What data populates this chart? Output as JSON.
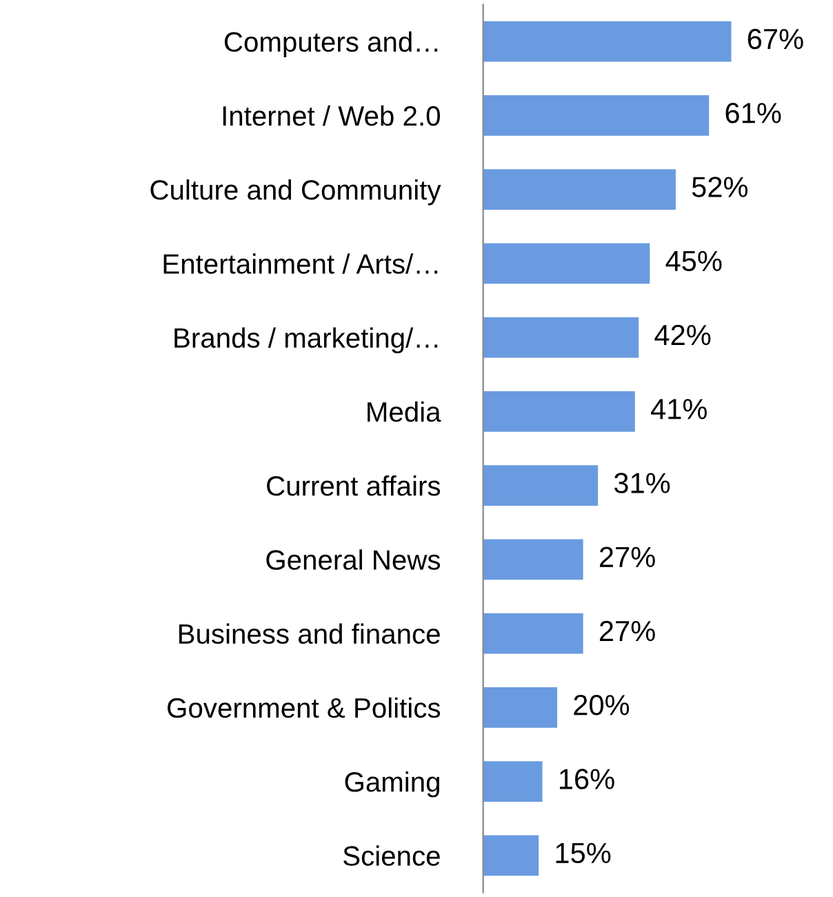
{
  "chart_data": {
    "type": "bar",
    "orientation": "horizontal",
    "color": "#6a9be0",
    "categories": [
      "Computers and…",
      "Internet / Web 2.0",
      "Culture and Community",
      "Entertainment / Arts/…",
      "Brands / marketing/…",
      "Media",
      "Current affairs",
      "General News",
      "Business and finance",
      "Government & Politics",
      "Gaming",
      "Science"
    ],
    "values": [
      67,
      61,
      52,
      45,
      42,
      41,
      31,
      27,
      27,
      20,
      16,
      15
    ],
    "value_labels": [
      "67%",
      "61%",
      "52%",
      "45%",
      "42%",
      "41%",
      "31%",
      "27%",
      "27%",
      "20%",
      "16%",
      "15%"
    ]
  }
}
